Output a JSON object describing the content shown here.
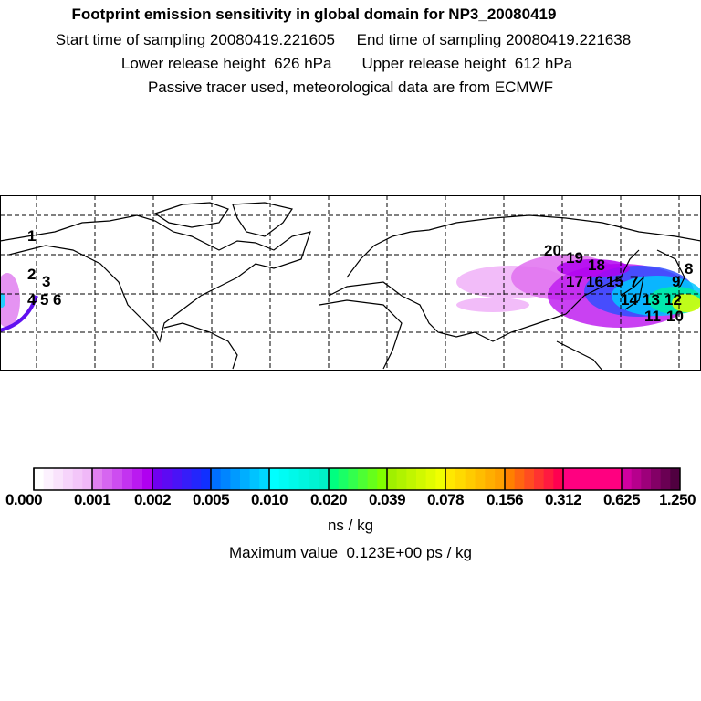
{
  "header": {
    "title": "Footprint emission sensitivity in global domain for NP3_20080419",
    "line1": "Start time of sampling 20080419.221605     End time of sampling 20080419.221638",
    "line2": "Lower release height  626 hPa       Upper release height  612 hPa",
    "line3": "Passive tracer used, meteorological data are from ECMWF"
  },
  "chart_data": {
    "type": "heatmap",
    "title": "Footprint emission sensitivity in global domain for NP3_20080419",
    "colorbar": {
      "levels": [
        "0.000",
        "0.001",
        "0.002",
        "0.005",
        "0.010",
        "0.020",
        "0.039",
        "0.078",
        "0.156",
        "0.312",
        "0.625",
        "1.250"
      ],
      "units": "ns / kg",
      "segment_colors": [
        [
          "#ffffff",
          "#f0b8f8"
        ],
        [
          "#e080f0",
          "#b000f0"
        ],
        [
          "#7000f0",
          "#1030ff"
        ],
        [
          "#0070ff",
          "#00d8ff"
        ],
        [
          "#00ffff",
          "#00f0c8"
        ],
        [
          "#00ff80",
          "#80ff00"
        ],
        [
          "#a0f000",
          "#f0ff00"
        ],
        [
          "#ffe800",
          "#ffa000"
        ],
        [
          "#ff8000",
          "#ff0050"
        ],
        [
          "#ff0080",
          "#ff0080"
        ],
        [
          "#d000a0",
          "#500040"
        ]
      ]
    },
    "maximum_value": "Maximum value  0.123E+00 ps / kg",
    "trajectory_labels": [
      "1",
      "2",
      "3",
      "4",
      "5",
      "6",
      "7",
      "8",
      "9",
      "10",
      "11",
      "12",
      "13",
      "14",
      "15",
      "16",
      "17",
      "18",
      "19",
      "20"
    ],
    "grid": true
  }
}
